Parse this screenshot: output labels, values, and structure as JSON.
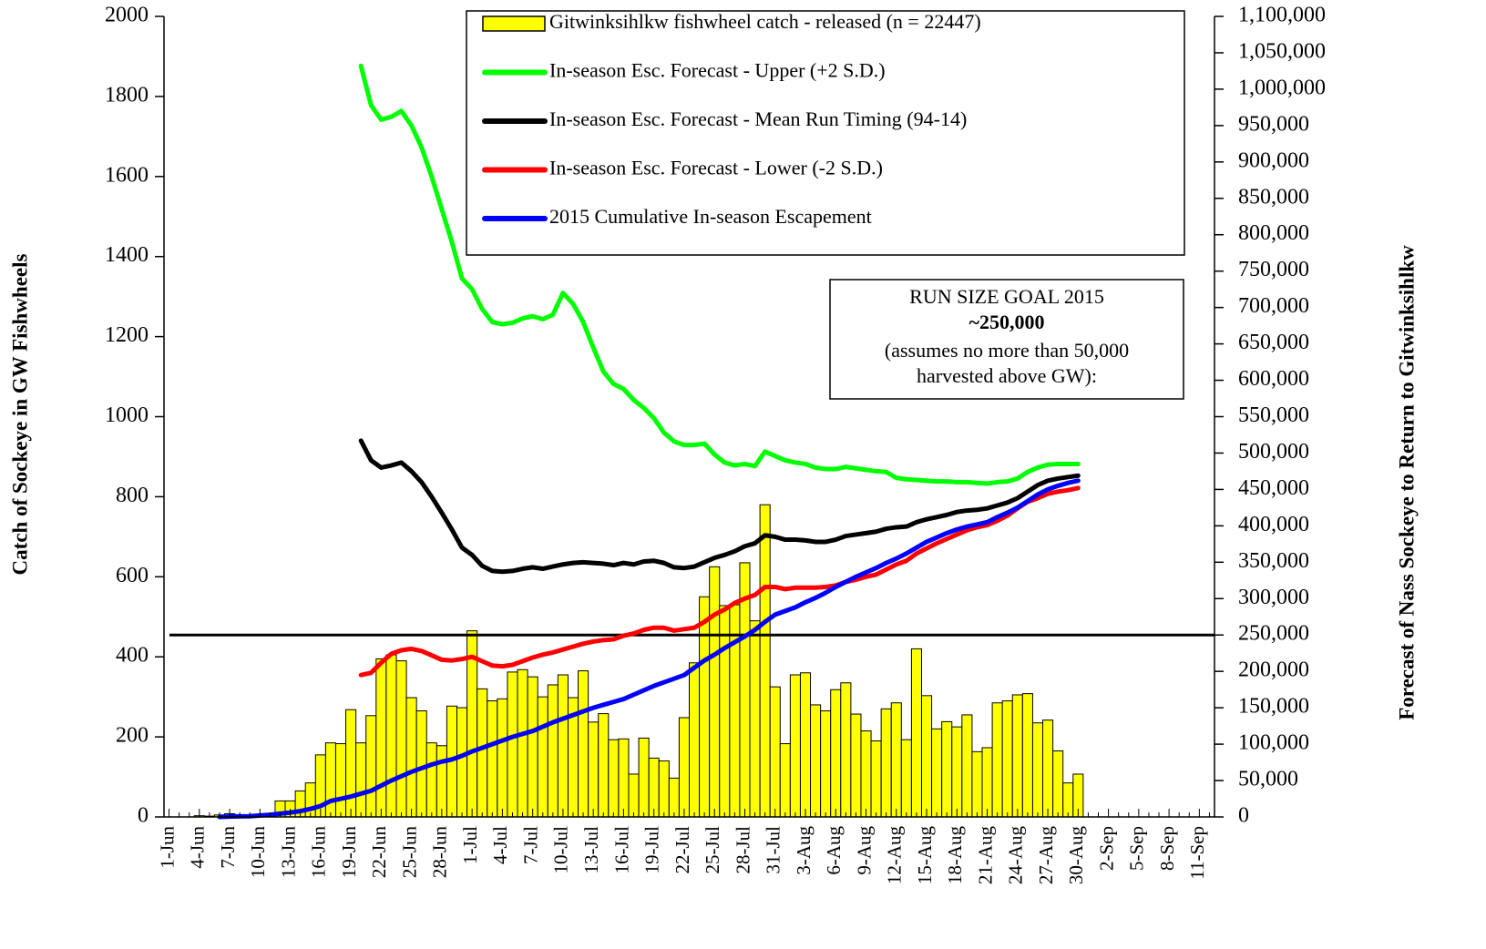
{
  "chart_data": {
    "type": "bar",
    "y_label": "Catch of Sockeye in GW Fishwheels",
    "y2_label": "Forecast of Nass Sockeye to Return to Gitwinksihlkw",
    "categories": [
      "1-Jun",
      null,
      null,
      "4-Jun",
      null,
      null,
      "7-Jun",
      null,
      null,
      "10-Jun",
      null,
      null,
      "13-Jun",
      null,
      null,
      "16-Jun",
      null,
      null,
      "19-Jun",
      null,
      null,
      "22-Jun",
      null,
      null,
      "25-Jun",
      null,
      null,
      "28-Jun",
      null,
      null,
      "1-Jul",
      null,
      null,
      "4-Jul",
      null,
      null,
      "7-Jul",
      null,
      null,
      "10-Jul",
      null,
      null,
      "13-Jul",
      null,
      null,
      "16-Jul",
      null,
      null,
      "19-Jul",
      null,
      null,
      "22-Jul",
      null,
      null,
      "25-Jul",
      null,
      null,
      "28-Jul",
      null,
      null,
      "31-Jul",
      null,
      null,
      "3-Aug",
      null,
      null,
      "6-Aug",
      null,
      null,
      "9-Aug",
      null,
      null,
      "12-Aug",
      null,
      null,
      "15-Aug",
      null,
      null,
      "18-Aug",
      null,
      null,
      "21-Aug",
      null,
      null,
      "24-Aug",
      null,
      null,
      "27-Aug",
      null,
      null,
      "30-Aug",
      null,
      null,
      "2-Sep",
      null,
      null,
      "5-Sep",
      null,
      null,
      "8-Sep",
      null,
      null,
      "11-Sep",
      null
    ],
    "ylim": [
      0,
      2000
    ],
    "yticks": [
      0,
      200,
      400,
      600,
      800,
      1000,
      1200,
      1400,
      1600,
      1800,
      2000
    ],
    "y2lim": [
      0,
      1100000
    ],
    "y2ticks": [
      0,
      {
        "value": 50000,
        "label": "50,000"
      },
      {
        "value": 100000,
        "label": "100,000"
      },
      {
        "value": 150000,
        "label": "150,000"
      },
      {
        "value": 200000,
        "label": "200,000"
      },
      {
        "value": 250000,
        "label": "250,000"
      },
      {
        "value": 300000,
        "label": "300,000"
      },
      {
        "value": 350000,
        "label": "350,000"
      },
      {
        "value": 400000,
        "label": "400,000"
      },
      {
        "value": 450000,
        "label": "450,000"
      },
      {
        "value": 500000,
        "label": "500,000"
      },
      {
        "value": 550000,
        "label": "550,000"
      },
      {
        "value": 600000,
        "label": "600,000"
      },
      {
        "value": 650000,
        "label": "650,000"
      },
      {
        "value": 700000,
        "label": "700,000"
      },
      {
        "value": 750000,
        "label": "750,000"
      },
      {
        "value": 800000,
        "label": "800,000"
      },
      {
        "value": 850000,
        "label": "850,000"
      },
      {
        "value": 900000,
        "label": "900,000"
      },
      {
        "value": 950000,
        "label": "950,000"
      },
      {
        "value": 1000000,
        "label": "1,000,000"
      },
      {
        "value": 1050000,
        "label": "1,050,000"
      },
      {
        "value": 1100000,
        "label": "1,100,000"
      }
    ],
    "series": [
      {
        "name": "Gitwinksihlkw fishwheel catch - released (n = 22447)",
        "type": "bar",
        "axis": "y",
        "color": "#ffff00",
        "values": [
          null,
          null,
          null,
          3,
          2,
          5,
          8,
          4,
          3,
          3,
          5,
          40,
          40,
          65,
          85,
          155,
          185,
          183,
          268,
          185,
          253,
          395,
          405,
          390,
          298,
          265,
          185,
          178,
          277,
          273,
          465,
          320,
          290,
          295,
          362,
          368,
          350,
          300,
          330,
          355,
          298,
          365,
          237,
          258,
          193,
          195,
          107,
          197,
          147,
          140,
          97,
          248,
          385,
          550,
          625,
          528,
          530,
          635,
          490,
          780,
          325,
          183,
          355,
          360,
          280,
          265,
          318,
          335,
          257,
          215,
          190,
          270,
          285,
          193,
          420,
          303,
          220,
          238,
          225,
          255,
          163,
          173,
          285,
          290,
          305,
          308,
          235,
          242,
          165,
          85,
          107,
          null,
          null,
          null,
          null,
          null,
          null,
          null,
          null,
          null,
          null,
          null,
          null,
          null
        ]
      },
      {
        "name": "In-season Esc. Forecast - Upper (+2 S.D.)",
        "type": "line",
        "axis": "y2",
        "color": "#00ff00",
        "values": [
          null,
          null,
          null,
          null,
          null,
          null,
          null,
          null,
          null,
          null,
          null,
          null,
          null,
          null,
          null,
          null,
          null,
          null,
          null,
          1032000,
          978000,
          958000,
          962000,
          970000,
          950000,
          920000,
          880000,
          835000,
          790000,
          740000,
          725000,
          698000,
          680000,
          677000,
          679000,
          685000,
          688000,
          684000,
          690000,
          720000,
          705000,
          680000,
          645000,
          612000,
          595000,
          588000,
          573000,
          562000,
          548000,
          528000,
          516000,
          511000,
          511000,
          513000,
          498000,
          487000,
          483000,
          485000,
          482000,
          502000,
          496000,
          490000,
          487000,
          485000,
          480000,
          478000,
          478000,
          481000,
          479000,
          477000,
          475000,
          474000,
          466000,
          464000,
          463000,
          462000,
          461000,
          461000,
          460000,
          460000,
          459000,
          458000,
          460000,
          461000,
          465000,
          474000,
          480000,
          484000,
          485000,
          485000,
          485000,
          null,
          null,
          null,
          null,
          null,
          null,
          null,
          null,
          null,
          null,
          null,
          null,
          null
        ]
      },
      {
        "name": "In-season Esc. Forecast - Mean Run Timing (94-14)",
        "type": "line",
        "axis": "y2",
        "color": "#000000",
        "values": [
          null,
          null,
          null,
          null,
          null,
          null,
          null,
          null,
          null,
          null,
          null,
          null,
          null,
          null,
          null,
          null,
          null,
          null,
          null,
          517000,
          490000,
          480000,
          483000,
          487000,
          475000,
          460000,
          440000,
          418000,
          395000,
          370000,
          360000,
          345000,
          338000,
          337000,
          338000,
          341000,
          343000,
          341000,
          344000,
          347000,
          349000,
          350000,
          349000,
          348000,
          346000,
          349000,
          347000,
          351000,
          352000,
          349000,
          343000,
          342000,
          344000,
          350000,
          356000,
          360000,
          365000,
          372000,
          376000,
          387000,
          385000,
          381000,
          381000,
          380000,
          378000,
          378000,
          381000,
          386000,
          388000,
          390000,
          392000,
          396000,
          398000,
          399000,
          405000,
          409000,
          412000,
          415000,
          419000,
          421000,
          422000,
          424000,
          428000,
          432000,
          438000,
          447000,
          456000,
          462000,
          465000,
          467000,
          469000,
          null,
          null,
          null,
          null,
          null,
          null,
          null,
          null,
          null,
          null,
          null,
          null,
          null
        ]
      },
      {
        "name": "In-season Esc. Forecast - Lower (-2 S.D.)",
        "type": "line",
        "axis": "y2",
        "color": "#ff0000",
        "values": [
          null,
          null,
          null,
          null,
          null,
          null,
          null,
          null,
          null,
          null,
          null,
          null,
          null,
          null,
          null,
          null,
          null,
          null,
          null,
          195000,
          198000,
          212000,
          224000,
          229000,
          231000,
          228000,
          222000,
          216000,
          215000,
          217000,
          220000,
          214000,
          208000,
          207000,
          209000,
          214000,
          219000,
          223000,
          226000,
          230000,
          234000,
          238000,
          241000,
          243000,
          244000,
          249000,
          252000,
          257000,
          260000,
          260000,
          256000,
          258000,
          260000,
          268000,
          278000,
          285000,
          294000,
          300000,
          305000,
          316000,
          316000,
          313000,
          315000,
          315000,
          315000,
          316000,
          318000,
          323000,
          326000,
          330000,
          333000,
          340000,
          347000,
          352000,
          362000,
          369000,
          376000,
          382000,
          388000,
          394000,
          398000,
          401000,
          407000,
          414000,
          424000,
          433000,
          438000,
          444000,
          447000,
          449000,
          452000,
          null,
          null,
          null,
          null,
          null,
          null,
          null,
          null,
          null,
          null,
          null,
          null,
          null
        ]
      },
      {
        "name": "2015 Cumulative In-season Escapement",
        "type": "line",
        "axis": "y2",
        "color": "#0000ff",
        "values": [
          null,
          null,
          null,
          null,
          null,
          0,
          500,
          800,
          1000,
          2000,
          3000,
          4500,
          6000,
          8000,
          11000,
          15000,
          22000,
          25000,
          28000,
          32000,
          36000,
          43000,
          50000,
          56000,
          62000,
          67000,
          72000,
          76000,
          79000,
          84000,
          90000,
          95000,
          100000,
          105000,
          110000,
          114000,
          118000,
          124000,
          130000,
          135000,
          140000,
          145000,
          150000,
          154000,
          158000,
          162000,
          168000,
          174000,
          180000,
          185000,
          190000,
          195000,
          205000,
          215000,
          223000,
          232000,
          240000,
          248000,
          257000,
          268000,
          278000,
          283000,
          288000,
          295000,
          301000,
          308000,
          316000,
          323000,
          330000,
          336000,
          342000,
          349000,
          355000,
          362000,
          370000,
          378000,
          384000,
          390000,
          395000,
          399000,
          402000,
          405000,
          412000,
          418000,
          425000,
          434000,
          443000,
          450000,
          455000,
          459000,
          462000,
          null,
          null,
          null,
          null,
          null,
          null,
          null,
          null,
          null,
          null,
          null,
          null,
          null
        ]
      }
    ],
    "reference_line": {
      "value": 250000,
      "axis": "y2",
      "color": "#000000"
    },
    "annotation": [
      "RUN SIZE GOAL 2015",
      "~250,000",
      "(assumes no more than 50,000",
      "harvested above GW):"
    ],
    "legend": "top"
  }
}
